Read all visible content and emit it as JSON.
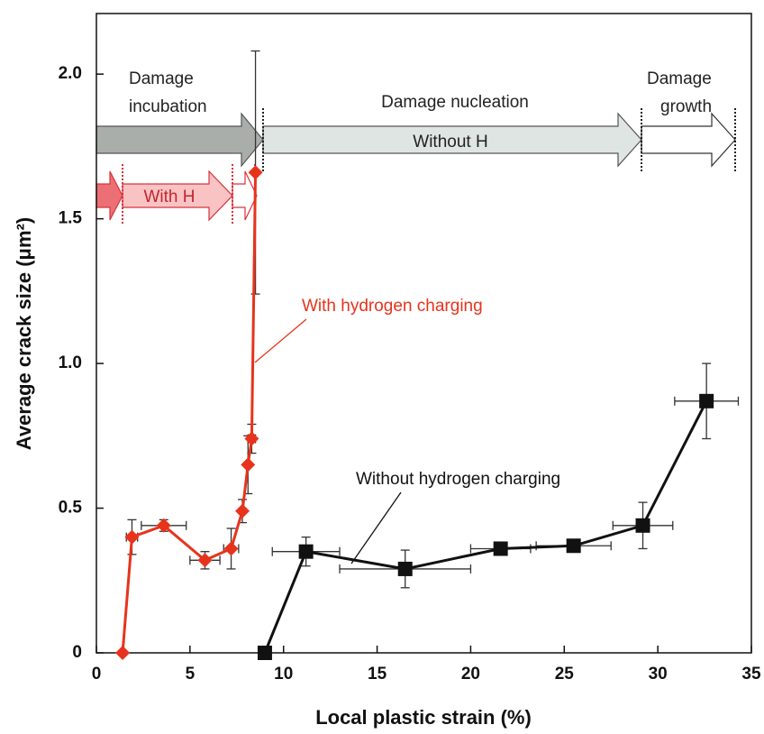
{
  "chart_data": {
    "type": "line",
    "xlabel": "Local plastic strain (%)",
    "ylabel": "Average crack size (μm²)",
    "xlim": [
      0,
      35
    ],
    "ylim": [
      0,
      2.2
    ],
    "xticks": [
      0,
      5,
      10,
      15,
      20,
      25,
      30,
      35
    ],
    "yticks": [
      0,
      0.5,
      {
        "value": 1,
        "label": "1.0"
      },
      1.5,
      {
        "value": 2,
        "label": "2.0"
      }
    ],
    "series": [
      {
        "name": "With hydrogen charging",
        "color": "#e8331c",
        "marker": "diamond",
        "x": [
          1.4,
          1.9,
          3.6,
          5.8,
          7.2,
          7.8,
          8.1,
          8.3,
          8.5
        ],
        "values": [
          0,
          0.4,
          0.44,
          0.32,
          0.36,
          0.49,
          0.65,
          0.74,
          1.66
        ],
        "xerr": [
          null,
          0.3,
          1.2,
          0.8,
          0.4,
          null,
          null,
          0.2,
          null
        ],
        "yerr": [
          null,
          0.06,
          0.02,
          0.03,
          0.07,
          0.04,
          0.1,
          0.05,
          0.42
        ]
      },
      {
        "name": "Without hydrogen charging",
        "color": "#111111",
        "marker": "square",
        "x": [
          9.0,
          11.2,
          16.5,
          21.6,
          25.5,
          29.2,
          32.6
        ],
        "values": [
          0,
          0.35,
          0.29,
          0.36,
          0.37,
          0.44,
          0.87
        ],
        "xerr": [
          null,
          1.8,
          3.5,
          1.6,
          2.0,
          1.6,
          1.7
        ],
        "yerr": [
          null,
          0.05,
          0.065,
          0.02,
          0.02,
          0.08,
          0.13
        ]
      }
    ],
    "annotations": [
      "Damage",
      "incubation",
      "Damage nucleation",
      "Damage",
      "growth",
      "Without H",
      "With H"
    ]
  }
}
